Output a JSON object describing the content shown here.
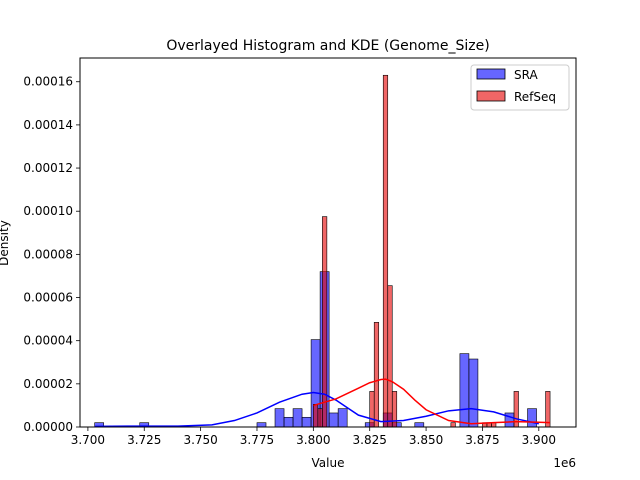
{
  "chart_data": {
    "type": "histogram",
    "title": "Overlayed Histogram and KDE (Genome_Size)",
    "xlabel": "Value",
    "ylabel": "Density",
    "x_offset_label": "1e6",
    "xlim": [
      3.6965,
      3.9165
    ],
    "ylim": [
      0,
      0.000171
    ],
    "x_ticks": [
      3.7,
      3.725,
      3.75,
      3.775,
      3.8,
      3.825,
      3.85,
      3.875,
      3.9
    ],
    "x_tick_labels": [
      "3.700",
      "3.725",
      "3.750",
      "3.775",
      "3.800",
      "3.825",
      "3.850",
      "3.875",
      "3.900"
    ],
    "y_ticks": [
      0,
      2e-05,
      4e-05,
      6e-05,
      8e-05,
      0.0001,
      0.00012,
      0.00014,
      0.00016
    ],
    "y_tick_labels": [
      "0.00000",
      "0.00002",
      "0.00004",
      "0.00006",
      "0.00008",
      "0.00010",
      "0.00012",
      "0.00014",
      "0.00016"
    ],
    "legend_position": "top-right",
    "series": [
      {
        "name": "SRA",
        "color": "#0000ff",
        "fill": "rgba(0,0,255,0.6)",
        "bins": [
          {
            "x0": 3.703,
            "x1": 3.707,
            "y": 2e-06
          },
          {
            "x0": 3.723,
            "x1": 3.727,
            "y": 2e-06
          },
          {
            "x0": 3.775,
            "x1": 3.779,
            "y": 2e-06
          },
          {
            "x0": 3.783,
            "x1": 3.787,
            "y": 8.5e-06
          },
          {
            "x0": 3.787,
            "x1": 3.791,
            "y": 4.5e-06
          },
          {
            "x0": 3.791,
            "x1": 3.795,
            "y": 8.5e-06
          },
          {
            "x0": 3.795,
            "x1": 3.799,
            "y": 4.5e-06
          },
          {
            "x0": 3.799,
            "x1": 3.803,
            "y": 4.05e-05
          },
          {
            "x0": 3.803,
            "x1": 3.807,
            "y": 7.2e-05
          },
          {
            "x0": 3.807,
            "x1": 3.811,
            "y": 6.5e-06
          },
          {
            "x0": 3.811,
            "x1": 3.815,
            "y": 8.5e-06
          },
          {
            "x0": 3.823,
            "x1": 3.827,
            "y": 2e-06
          },
          {
            "x0": 3.831,
            "x1": 3.835,
            "y": 6.5e-06
          },
          {
            "x0": 3.835,
            "x1": 3.839,
            "y": 2e-06
          },
          {
            "x0": 3.845,
            "x1": 3.849,
            "y": 2e-06
          },
          {
            "x0": 3.865,
            "x1": 3.869,
            "y": 3.4e-05
          },
          {
            "x0": 3.869,
            "x1": 3.873,
            "y": 3.15e-05
          },
          {
            "x0": 3.885,
            "x1": 3.889,
            "y": 6.5e-06
          },
          {
            "x0": 3.895,
            "x1": 3.899,
            "y": 8.5e-06
          }
        ],
        "kde": {
          "x": [
            3.703,
            3.72,
            3.74,
            3.755,
            3.765,
            3.775,
            3.785,
            3.795,
            3.8,
            3.805,
            3.81,
            3.815,
            3.82,
            3.83,
            3.84,
            3.85,
            3.86,
            3.87,
            3.88,
            3.89,
            3.9
          ],
          "y": [
            3e-07,
            4e-07,
            4e-07,
            1e-06,
            3e-06,
            6.5e-06,
            1.15e-05,
            1.52e-05,
            1.6e-05,
            1.52e-05,
            1.25e-05,
            9e-06,
            5.5e-06,
            2.5e-06,
            3e-06,
            5e-06,
            7.5e-06,
            8.5e-06,
            7e-06,
            3.8e-06,
            1.5e-06
          ]
        }
      },
      {
        "name": "RefSeq",
        "color": "#ff0000",
        "fill": "rgba(230,0,0,0.6)",
        "bins": [
          {
            "x0": 3.8,
            "x1": 3.802,
            "y": 1.05e-05
          },
          {
            "x0": 3.802,
            "x1": 3.804,
            "y": 8.5e-06
          },
          {
            "x0": 3.804,
            "x1": 3.806,
            "y": 9.75e-05
          },
          {
            "x0": 3.825,
            "x1": 3.827,
            "y": 1.65e-05
          },
          {
            "x0": 3.827,
            "x1": 3.829,
            "y": 4.85e-05
          },
          {
            "x0": 3.831,
            "x1": 3.833,
            "y": 0.000163
          },
          {
            "x0": 3.833,
            "x1": 3.835,
            "y": 6.55e-05
          },
          {
            "x0": 3.835,
            "x1": 3.837,
            "y": 1.65e-05
          },
          {
            "x0": 3.861,
            "x1": 3.863,
            "y": 2e-06
          },
          {
            "x0": 3.875,
            "x1": 3.877,
            "y": 2e-06
          },
          {
            "x0": 3.877,
            "x1": 3.879,
            "y": 2e-06
          },
          {
            "x0": 3.879,
            "x1": 3.881,
            "y": 2e-06
          },
          {
            "x0": 3.889,
            "x1": 3.891,
            "y": 1.65e-05
          },
          {
            "x0": 3.903,
            "x1": 3.905,
            "y": 1.65e-05
          }
        ],
        "kde": {
          "x": [
            3.8,
            3.81,
            3.82,
            3.825,
            3.83,
            3.832,
            3.835,
            3.84,
            3.845,
            3.85,
            3.86,
            3.87,
            3.88,
            3.89,
            3.9,
            3.905
          ],
          "y": [
            1e-05,
            1.3e-05,
            1.8e-05,
            2.05e-05,
            2.2e-05,
            2.22e-05,
            2.1e-05,
            1.75e-05,
            1.25e-05,
            8e-06,
            3e-06,
            1.5e-06,
            2e-06,
            2.5e-06,
            2.2e-06,
            2e-06
          ]
        }
      }
    ]
  }
}
